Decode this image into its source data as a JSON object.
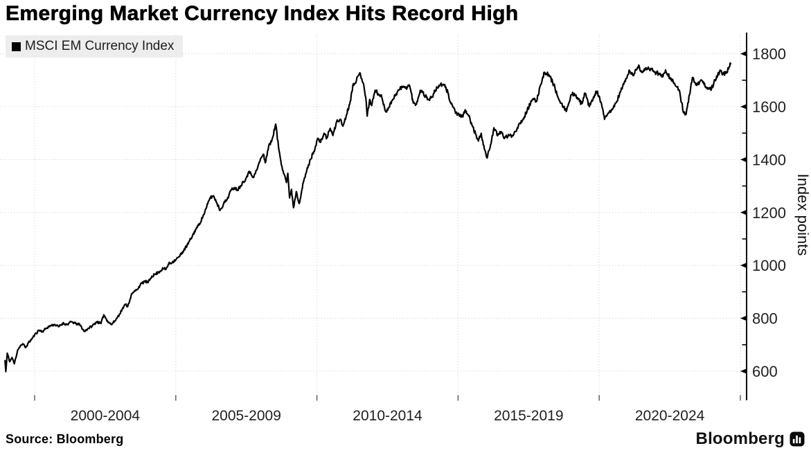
{
  "header": {
    "title": "Emerging Market Currency Index Hits Record High"
  },
  "legend": {
    "label": "MSCI EM Currency Index",
    "swatch_color": "#000000"
  },
  "footer": {
    "source": "Source: Bloomberg",
    "brand": "Bloomberg",
    "brand_icon": "bar-chart-in-rounded-square"
  },
  "style": {
    "accent": "#000000",
    "grid_color": "#cccccc",
    "legend_bg": "#ededed",
    "text_color": "#1f1f1f"
  },
  "chart_data": {
    "type": "line",
    "title": "Emerging Market Currency Index Hits Record High",
    "series_name": "MSCI EM Currency Index",
    "xlabel": "",
    "ylabel": "Index points",
    "ylim": [
      490,
      1880
    ],
    "y_ticks": [
      600,
      800,
      1000,
      1200,
      1400,
      1600,
      1800
    ],
    "y_minor_tick_step": 100,
    "x_boundaries": [
      2000,
      2005,
      2010,
      2015,
      2020,
      2025
    ],
    "x_tick_labels": [
      "2000-2004",
      "2005-2009",
      "2010-2014",
      "2015-2019",
      "2020-2024"
    ],
    "grid": "dotted",
    "legend_position": "top-left",
    "axis_side": "right",
    "line_color": "#000000",
    "points": [
      [
        1998.95,
        640
      ],
      [
        1998.98,
        598
      ],
      [
        1999.03,
        668
      ],
      [
        1999.12,
        636
      ],
      [
        1999.2,
        652
      ],
      [
        1999.28,
        628
      ],
      [
        1999.4,
        680
      ],
      [
        1999.5,
        697
      ],
      [
        1999.6,
        702
      ],
      [
        1999.68,
        689
      ],
      [
        1999.78,
        707
      ],
      [
        1999.9,
        722
      ],
      [
        2000.0,
        737
      ],
      [
        2000.15,
        755
      ],
      [
        2000.28,
        750
      ],
      [
        2000.42,
        763
      ],
      [
        2000.58,
        773
      ],
      [
        2000.72,
        776
      ],
      [
        2000.85,
        768
      ],
      [
        2001.0,
        781
      ],
      [
        2001.15,
        776
      ],
      [
        2001.3,
        787
      ],
      [
        2001.45,
        780
      ],
      [
        2001.6,
        776
      ],
      [
        2001.76,
        750
      ],
      [
        2001.9,
        762
      ],
      [
        2002.05,
        772
      ],
      [
        2002.2,
        787
      ],
      [
        2002.35,
        780
      ],
      [
        2002.45,
        813
      ],
      [
        2002.58,
        790
      ],
      [
        2002.72,
        776
      ],
      [
        2002.88,
        795
      ],
      [
        2003.0,
        815
      ],
      [
        2003.1,
        834
      ],
      [
        2003.22,
        853
      ],
      [
        2003.3,
        845
      ],
      [
        2003.42,
        887
      ],
      [
        2003.52,
        900
      ],
      [
        2003.62,
        908
      ],
      [
        2003.75,
        927
      ],
      [
        2003.9,
        940
      ],
      [
        2004.02,
        935
      ],
      [
        2004.15,
        959
      ],
      [
        2004.28,
        967
      ],
      [
        2004.4,
        975
      ],
      [
        2004.55,
        988
      ],
      [
        2004.65,
        985
      ],
      [
        2004.75,
        1006
      ],
      [
        2004.88,
        1012
      ],
      [
        2005.03,
        1025
      ],
      [
        2005.12,
        1032
      ],
      [
        2005.25,
        1052
      ],
      [
        2005.4,
        1075
      ],
      [
        2005.59,
        1111
      ],
      [
        2005.7,
        1135
      ],
      [
        2005.8,
        1150
      ],
      [
        2005.96,
        1184
      ],
      [
        2006.08,
        1216
      ],
      [
        2006.21,
        1255
      ],
      [
        2006.33,
        1263
      ],
      [
        2006.45,
        1238
      ],
      [
        2006.57,
        1208
      ],
      [
        2006.7,
        1234
      ],
      [
        2006.82,
        1250
      ],
      [
        2006.94,
        1281
      ],
      [
        2007.07,
        1294
      ],
      [
        2007.19,
        1286
      ],
      [
        2007.29,
        1300
      ],
      [
        2007.38,
        1315
      ],
      [
        2007.48,
        1328
      ],
      [
        2007.56,
        1347
      ],
      [
        2007.64,
        1353
      ],
      [
        2007.76,
        1332
      ],
      [
        2007.9,
        1370
      ],
      [
        2008.02,
        1406
      ],
      [
        2008.1,
        1420
      ],
      [
        2008.17,
        1388
      ],
      [
        2008.29,
        1451
      ],
      [
        2008.39,
        1467
      ],
      [
        2008.54,
        1534
      ],
      [
        2008.64,
        1446
      ],
      [
        2008.76,
        1374
      ],
      [
        2008.86,
        1340
      ],
      [
        2008.92,
        1313
      ],
      [
        2008.97,
        1348
      ],
      [
        2009.03,
        1255
      ],
      [
        2009.1,
        1287
      ],
      [
        2009.17,
        1218
      ],
      [
        2009.27,
        1279
      ],
      [
        2009.37,
        1234
      ],
      [
        2009.52,
        1313
      ],
      [
        2009.64,
        1358
      ],
      [
        2009.77,
        1400
      ],
      [
        2009.89,
        1430
      ],
      [
        2010.03,
        1480
      ],
      [
        2010.13,
        1465
      ],
      [
        2010.25,
        1499
      ],
      [
        2010.35,
        1481
      ],
      [
        2010.47,
        1518
      ],
      [
        2010.57,
        1491
      ],
      [
        2010.7,
        1544
      ],
      [
        2010.82,
        1552
      ],
      [
        2010.92,
        1526
      ],
      [
        2011.05,
        1570
      ],
      [
        2011.18,
        1620
      ],
      [
        2011.29,
        1687
      ],
      [
        2011.4,
        1700
      ],
      [
        2011.53,
        1727
      ],
      [
        2011.65,
        1687
      ],
      [
        2011.73,
        1635
      ],
      [
        2011.78,
        1564
      ],
      [
        2011.87,
        1627
      ],
      [
        2011.94,
        1604
      ],
      [
        2012.06,
        1662
      ],
      [
        2012.18,
        1648
      ],
      [
        2012.3,
        1635
      ],
      [
        2012.43,
        1583
      ],
      [
        2012.55,
        1596
      ],
      [
        2012.65,
        1622
      ],
      [
        2012.77,
        1643
      ],
      [
        2012.9,
        1662
      ],
      [
        2013.02,
        1675
      ],
      [
        2013.14,
        1670
      ],
      [
        2013.27,
        1682
      ],
      [
        2013.34,
        1653
      ],
      [
        2013.41,
        1614
      ],
      [
        2013.51,
        1609
      ],
      [
        2013.58,
        1630
      ],
      [
        2013.66,
        1662
      ],
      [
        2013.75,
        1653
      ],
      [
        2013.88,
        1635
      ],
      [
        2013.95,
        1627
      ],
      [
        2014.07,
        1635
      ],
      [
        2014.2,
        1662
      ],
      [
        2014.32,
        1680
      ],
      [
        2014.44,
        1682
      ],
      [
        2014.51,
        1680
      ],
      [
        2014.64,
        1653
      ],
      [
        2014.73,
        1617
      ],
      [
        2014.8,
        1604
      ],
      [
        2014.93,
        1577
      ],
      [
        2015.05,
        1564
      ],
      [
        2015.17,
        1561
      ],
      [
        2015.25,
        1588
      ],
      [
        2015.34,
        1570
      ],
      [
        2015.42,
        1556
      ],
      [
        2015.49,
        1530
      ],
      [
        2015.62,
        1496
      ],
      [
        2015.72,
        1470
      ],
      [
        2015.82,
        1499
      ],
      [
        2015.93,
        1440
      ],
      [
        2016.03,
        1406
      ],
      [
        2016.15,
        1455
      ],
      [
        2016.27,
        1520
      ],
      [
        2016.4,
        1490
      ],
      [
        2016.52,
        1505
      ],
      [
        2016.65,
        1482
      ],
      [
        2016.8,
        1490
      ],
      [
        2016.93,
        1491
      ],
      [
        2017.1,
        1520
      ],
      [
        2017.2,
        1539
      ],
      [
        2017.35,
        1562
      ],
      [
        2017.45,
        1587
      ],
      [
        2017.6,
        1620
      ],
      [
        2017.67,
        1627
      ],
      [
        2017.78,
        1619
      ],
      [
        2017.9,
        1675
      ],
      [
        2018.06,
        1730
      ],
      [
        2018.15,
        1725
      ],
      [
        2018.23,
        1718
      ],
      [
        2018.35,
        1692
      ],
      [
        2018.43,
        1673
      ],
      [
        2018.52,
        1640
      ],
      [
        2018.58,
        1624
      ],
      [
        2018.72,
        1597
      ],
      [
        2018.85,
        1587
      ],
      [
        2018.95,
        1620
      ],
      [
        2019.02,
        1645
      ],
      [
        2019.12,
        1650
      ],
      [
        2019.25,
        1628
      ],
      [
        2019.38,
        1611
      ],
      [
        2019.5,
        1650
      ],
      [
        2019.65,
        1600
      ],
      [
        2019.78,
        1628
      ],
      [
        2019.9,
        1658
      ],
      [
        2020.0,
        1640
      ],
      [
        2020.1,
        1598
      ],
      [
        2020.19,
        1552
      ],
      [
        2020.3,
        1572
      ],
      [
        2020.48,
        1592
      ],
      [
        2020.6,
        1615
      ],
      [
        2020.75,
        1655
      ],
      [
        2020.87,
        1685
      ],
      [
        2021.0,
        1718
      ],
      [
        2021.08,
        1734
      ],
      [
        2021.2,
        1717
      ],
      [
        2021.4,
        1757
      ],
      [
        2021.5,
        1730
      ],
      [
        2021.62,
        1738
      ],
      [
        2021.72,
        1742
      ],
      [
        2021.82,
        1744
      ],
      [
        2021.92,
        1735
      ],
      [
        2022.02,
        1728
      ],
      [
        2022.12,
        1726
      ],
      [
        2022.22,
        1712
      ],
      [
        2022.35,
        1739
      ],
      [
        2022.5,
        1710
      ],
      [
        2022.62,
        1695
      ],
      [
        2022.72,
        1677
      ],
      [
        2022.82,
        1664
      ],
      [
        2022.92,
        1615
      ],
      [
        2023.0,
        1576
      ],
      [
        2023.08,
        1571
      ],
      [
        2023.2,
        1645
      ],
      [
        2023.3,
        1709
      ],
      [
        2023.42,
        1682
      ],
      [
        2023.55,
        1690
      ],
      [
        2023.65,
        1698
      ],
      [
        2023.75,
        1677
      ],
      [
        2023.88,
        1670
      ],
      [
        2023.98,
        1669
      ],
      [
        2024.1,
        1702
      ],
      [
        2024.2,
        1722
      ],
      [
        2024.3,
        1735
      ],
      [
        2024.38,
        1722
      ],
      [
        2024.48,
        1726
      ],
      [
        2024.58,
        1742
      ],
      [
        2024.66,
        1762
      ]
    ]
  }
}
